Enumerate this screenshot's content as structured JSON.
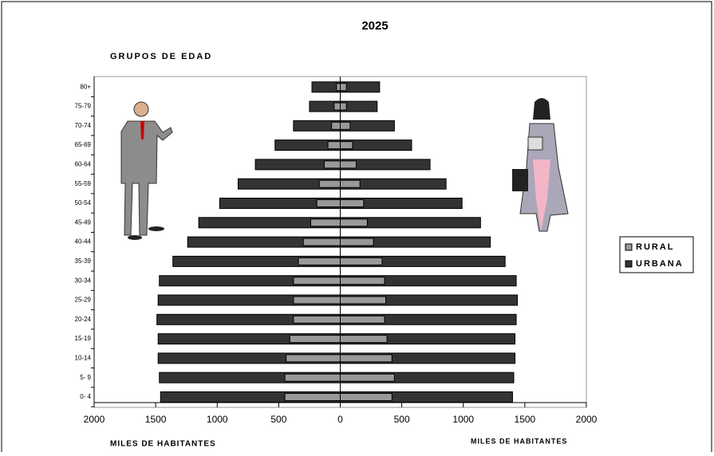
{
  "chart_data": {
    "type": "pyramid",
    "title": "2025",
    "y_label": "GRUPOS DE EDAD",
    "x_label_left": "MILES DE HABITANTES",
    "x_label_right": "MILES DE HABITANTES",
    "categories": [
      "0- 4",
      "5- 9",
      "10-14",
      "15-19",
      "20-24",
      "25-29",
      "30-34",
      "35-39",
      "40-44",
      "45-49",
      "50-54",
      "55-59",
      "60-64",
      "65-69",
      "70-74",
      "75-79",
      "80+"
    ],
    "series": [
      {
        "name": "URBANA",
        "color": "#333333",
        "values": [
          -1460,
          -1470,
          -1480,
          -1480,
          -1490,
          -1480,
          -1470,
          -1360,
          -1240,
          -1150,
          -980,
          -830,
          -690,
          -530,
          -380,
          -250,
          -230
        ]
      },
      {
        "color": "#333333",
        "values": [
          1400,
          1410,
          1420,
          1420,
          1430,
          1440,
          1430,
          1340,
          1220,
          1140,
          990,
          860,
          730,
          580,
          440,
          300,
          320
        ]
      },
      {
        "name": "RURAL",
        "color": "#999999",
        "values": [
          -450,
          -450,
          -440,
          -410,
          -380,
          -380,
          -380,
          -340,
          -300,
          -240,
          -190,
          -170,
          -130,
          -100,
          -70,
          -50,
          -30
        ]
      },
      {
        "color": "#999999",
        "values": [
          420,
          440,
          420,
          380,
          360,
          370,
          360,
          340,
          270,
          220,
          190,
          160,
          130,
          100,
          80,
          50,
          50
        ]
      }
    ],
    "legend_order": [
      2,
      0
    ],
    "xlim": [
      -2000,
      2000
    ],
    "xticks": [
      {
        "value": -2000,
        "label": "2000"
      },
      {
        "value": -1500,
        "label": "1500"
      },
      {
        "value": -1000,
        "label": "1000"
      },
      {
        "value": -500,
        "label": "500"
      },
      0,
      500,
      1000,
      1500,
      2000
    ]
  }
}
